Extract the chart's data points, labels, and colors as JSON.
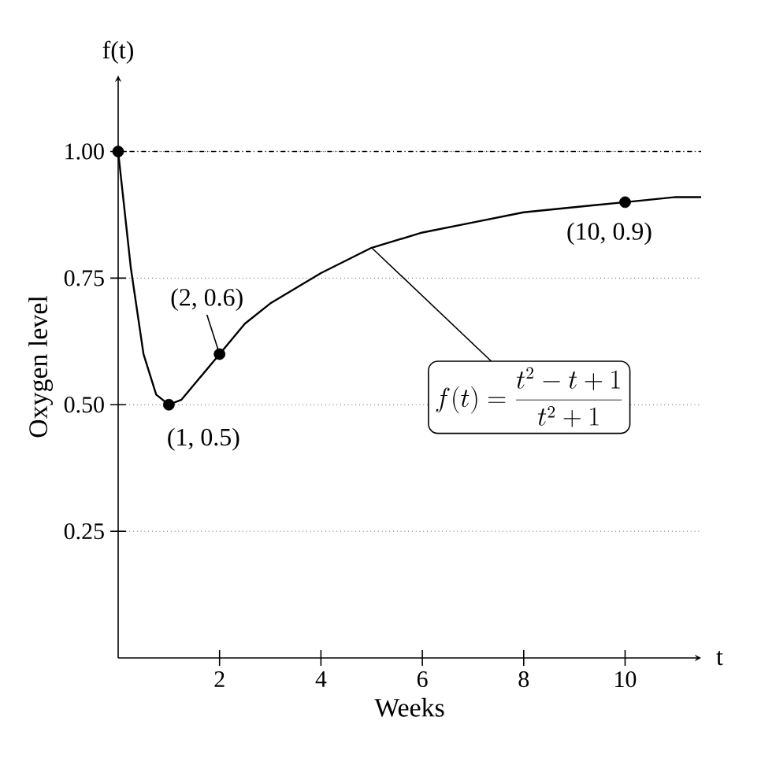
{
  "chart_data": {
    "type": "line",
    "xlabel": "Weeks",
    "ylabel": "Oxygen level",
    "xlim": [
      0,
      11.5
    ],
    "ylim": [
      0,
      1.15
    ],
    "xticks": [
      2,
      4,
      6,
      8,
      10
    ],
    "yticks": [
      {
        "value": 0.25,
        "label": "0.25"
      },
      {
        "value": 0.5,
        "label": "0.50"
      },
      {
        "value": 0.75,
        "label": "0.75"
      },
      {
        "value": 1,
        "label": "1.00"
      }
    ],
    "grid": "y",
    "ref_lines": [
      {
        "axis": "y",
        "value": 1,
        "label": null,
        "line_style": "dashed"
      }
    ],
    "series": [
      {
        "color": "#000000",
        "marker": "none",
        "x": [
          0,
          0.25,
          0.5,
          0.75,
          1,
          1.25,
          1.5,
          2,
          2.5,
          3,
          3.5,
          4,
          5,
          6,
          7,
          8,
          9,
          10,
          11,
          11.5
        ],
        "values": [
          1,
          0.77,
          0.6,
          0.52,
          0.5,
          0.51,
          0.54,
          0.6,
          0.66,
          0.7,
          0.73,
          0.76,
          0.81,
          0.84,
          0.86,
          0.88,
          0.89,
          0.9,
          0.91,
          0.91
        ]
      },
      {
        "type": "scatter",
        "color": "#000000",
        "marker": "circle",
        "x": [
          0,
          1,
          2,
          10
        ],
        "values": [
          1,
          0.5,
          0.6,
          0.9
        ]
      }
    ],
    "annotations": [
      "f(t)",
      "t",
      {
        "text": "(2, 0.6)",
        "x": 2,
        "y": 0.6
      },
      {
        "text": "(1, 0.5)",
        "x": 1,
        "y": 0.5
      },
      {
        "text": "(10, 0.9)",
        "x": 10,
        "y": 0.9
      },
      {
        "text": "f(t) = \\frac{t^2 - t + 1}{t^2 + 1}",
        "x": 5,
        "y": 0.81
      }
    ]
  }
}
